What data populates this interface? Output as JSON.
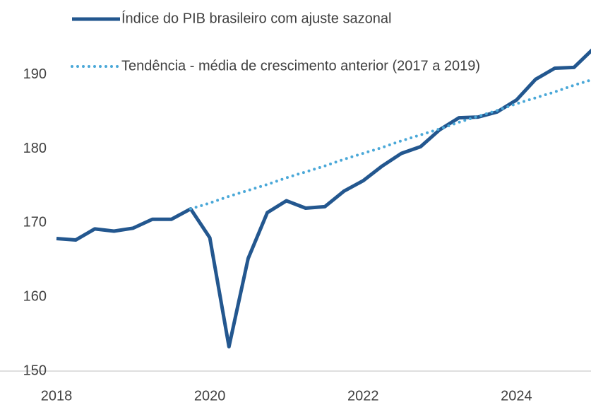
{
  "chart_data": {
    "type": "line",
    "x": [
      2018,
      2018.25,
      2018.5,
      2018.75,
      2019,
      2019.25,
      2019.5,
      2019.75,
      2020,
      2020.25,
      2020.5,
      2020.75,
      2021,
      2021.25,
      2021.5,
      2021.75,
      2022,
      2022.25,
      2022.5,
      2022.75,
      2023,
      2023.25,
      2023.5,
      2023.75,
      2024,
      2024.25,
      2024.5,
      2024.75,
      2025
    ],
    "series": [
      {
        "name": "Índice do PIB brasileiro com ajuste sazonal",
        "color": "#23578f",
        "style": "solid",
        "values": [
          167.9,
          167.7,
          169.2,
          168.9,
          169.3,
          170.5,
          170.5,
          171.9,
          168.0,
          153.3,
          165.2,
          171.4,
          173.0,
          172.0,
          172.2,
          174.3,
          175.7,
          177.7,
          179.4,
          180.3,
          182.6,
          184.2,
          184.3,
          185.0,
          186.6,
          189.4,
          190.9,
          191.0,
          193.5
        ]
      },
      {
        "name": "Tendência - média de crescimento anterior (2017 a 2019)",
        "color": "#4aa8d8",
        "style": "dotted",
        "values": [
          null,
          null,
          null,
          null,
          null,
          null,
          null,
          171.9,
          172.7,
          173.6,
          174.4,
          175.2,
          176.1,
          176.9,
          177.7,
          178.6,
          179.4,
          180.2,
          181.1,
          181.9,
          182.7,
          183.6,
          184.4,
          185.2,
          186.1,
          186.9,
          187.7,
          188.6,
          189.4
        ]
      }
    ],
    "xlim": [
      2018,
      2025
    ],
    "xticks": [
      2018,
      2020,
      2022,
      2024
    ],
    "ylim": [
      150,
      194
    ],
    "yticks": [
      150,
      160,
      170,
      180,
      190
    ],
    "grid": false
  }
}
